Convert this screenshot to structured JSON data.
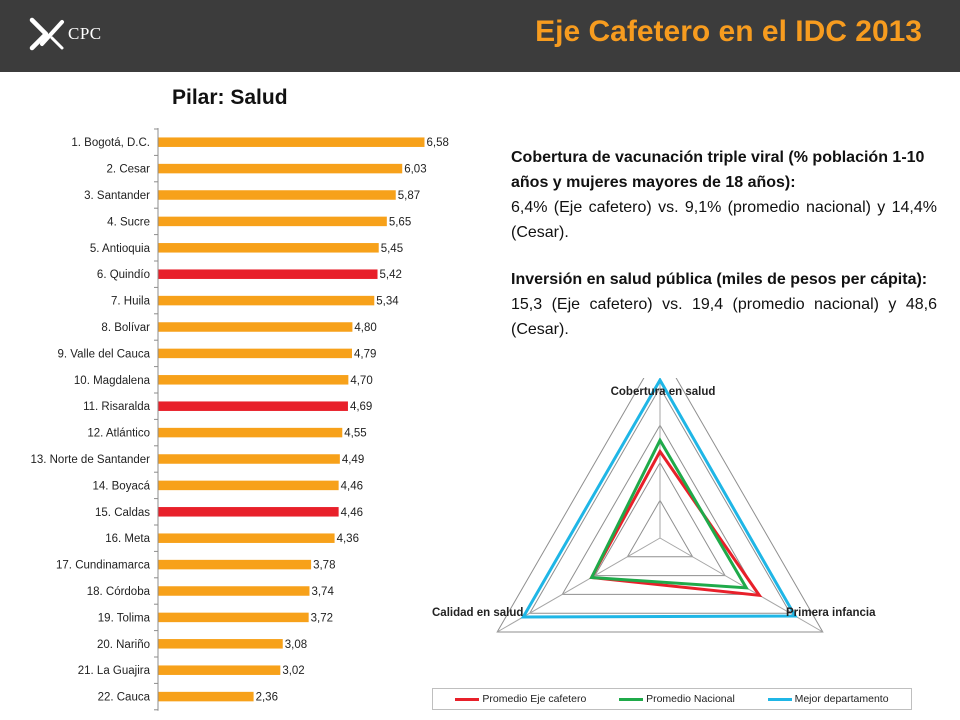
{
  "header": {
    "logo_text": "CPC",
    "title": "Eje Cafetero en el IDC 2013",
    "background_color": "#3c3c3c",
    "title_color": "#f79c1f"
  },
  "subtitle": "Pilar: Salud",
  "info": [
    {
      "heading": "Cobertura de vacunación triple viral (% población 1-10 años y mujeres mayores de 18 años):",
      "body": "6,4% (Eje cafetero) vs. 9,1% (promedio nacional) y 14,4% (Cesar)."
    },
    {
      "heading": "Inversión en salud pública (miles de pesos per cápita):",
      "body": "15,3 (Eje cafetero) vs. 19,4 (promedio nacional) y 48,6 (Cesar)."
    }
  ],
  "chart_data": [
    {
      "type": "bar",
      "orientation": "horizontal",
      "categories": [
        "1. Bogotá, D.C.",
        "2. Cesar",
        "3. Santander",
        "4. Sucre",
        "5. Antioquia",
        "6. Quindío",
        "7. Huila",
        "8. Bolívar",
        "9. Valle del Cauca",
        "10. Magdalena",
        "11. Risaralda",
        "12. Atlántico",
        "13. Norte de Santander",
        "14. Boyacá",
        "15. Caldas",
        "16. Meta",
        "17. Cundinamarca",
        "18. Córdoba",
        "19. Tolima",
        "20. Nariño",
        "21. La Guajira",
        "22. Cauca"
      ],
      "values": [
        6.58,
        6.03,
        5.87,
        5.65,
        5.45,
        5.42,
        5.34,
        4.8,
        4.79,
        4.7,
        4.69,
        4.55,
        4.49,
        4.46,
        4.46,
        4.36,
        3.78,
        3.74,
        3.72,
        3.08,
        3.02,
        2.36
      ],
      "value_labels": [
        "6,58",
        "6,03",
        "5,87",
        "5,65",
        "5,45",
        "5,42",
        "5,34",
        "4,80",
        "4,79",
        "4,70",
        "4,69",
        "4,55",
        "4,49",
        "4,46",
        "4,46",
        "4,36",
        "3,78",
        "3,74",
        "3,72",
        "3,08",
        "3,02",
        "2,36"
      ],
      "highlighted": [
        "6. Quindío",
        "11. Risaralda",
        "15. Caldas"
      ],
      "bar_color": "#f7a11a",
      "highlight_color": "#e8202a",
      "xlim": [
        0,
        7
      ],
      "grid": false
    },
    {
      "type": "radar",
      "axes": [
        "Cobertura en salud",
        "Primera infancia",
        "Calidad en salud"
      ],
      "rlim": [
        0,
        10
      ],
      "grid_levels": 5,
      "grid": true,
      "legend": "bottom",
      "series": [
        {
          "name": "Promedio Eje cafetero",
          "values": [
            4.6,
            6.1,
            4.2
          ],
          "color": "#e8202a"
        },
        {
          "name": "Promedio Nacional",
          "values": [
            5.2,
            5.3,
            4.2
          ],
          "color": "#1faa4a"
        },
        {
          "name": "Mejor departamento",
          "values": [
            8.4,
            8.3,
            8.4
          ],
          "color": "#1fb6e6"
        }
      ]
    }
  ]
}
